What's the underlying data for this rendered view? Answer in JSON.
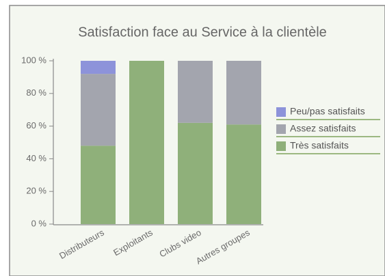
{
  "chart_data": {
    "type": "stacked_bar",
    "title": "Satisfaction face au Service à la clientèle",
    "categories": [
      "Distributeurs",
      "Exploitants",
      "Clubs video",
      "Autres groupes"
    ],
    "series": [
      {
        "name": "Très satisfaits",
        "color": "#8fb07a",
        "values": [
          48,
          100,
          62,
          61
        ]
      },
      {
        "name": "Assez satisfaits",
        "color": "#a3a5ae",
        "values": [
          44,
          0,
          38,
          39
        ]
      },
      {
        "name": "Peu/pas satisfaits",
        "color": "#8d93da",
        "values": [
          8,
          0,
          0,
          0
        ]
      }
    ],
    "ylim": [
      0,
      100
    ],
    "yticks": [
      {
        "value": 0,
        "label": "0 %"
      },
      {
        "value": 20,
        "label": "20 %"
      },
      {
        "value": 40,
        "label": "40 %"
      },
      {
        "value": 60,
        "label": "60 %"
      },
      {
        "value": 80,
        "label": "80 %"
      },
      {
        "value": 100,
        "label": "100 %"
      }
    ],
    "legend": "right"
  }
}
